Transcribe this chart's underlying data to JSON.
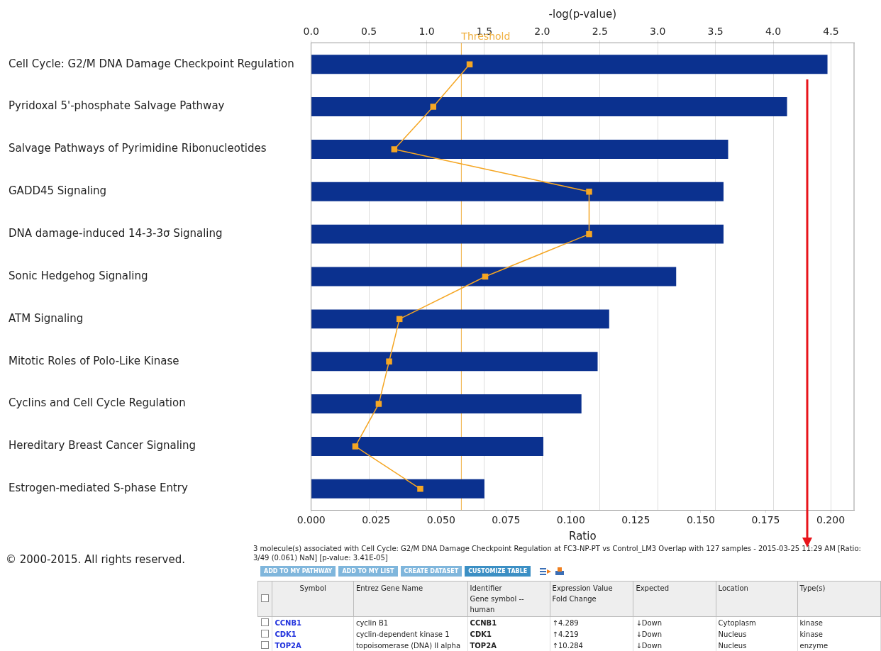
{
  "chart_data": [
    {
      "type": "bar",
      "orientation": "horizontal",
      "categories": [
        "Cell Cycle: G2/M DNA Damage Checkpoint Regulation",
        "Pyridoxal 5'-phosphate Salvage Pathway",
        "Salvage Pathways of Pyrimidine Ribonucleotides",
        "GADD45 Signaling",
        "DNA damage-induced 14-3-3σ Signaling",
        "Sonic Hedgehog Signaling",
        "ATM Signaling",
        "Mitotic Roles of Polo-Like Kinase",
        "Cyclins and Cell Cycle Regulation",
        "Hereditary Breast Cancer Signaling",
        "Estrogen-mediated S-phase Entry"
      ],
      "series": [
        {
          "type": "bar",
          "axis": "x2",
          "color": "#0b318f",
          "values": [
            4.47,
            4.12,
            3.61,
            3.57,
            3.57,
            3.16,
            2.58,
            2.48,
            2.34,
            2.01,
            1.5
          ]
        },
        {
          "type": "line",
          "color": "#f5a623",
          "values": [
            0.061,
            0.047,
            0.032,
            0.107,
            0.107,
            0.067,
            0.034,
            0.03,
            0.026,
            0.017,
            0.042
          ]
        }
      ],
      "xlabel": "Ratio",
      "x2label": "-log(p-value)",
      "xlim": [
        0,
        0.209
      ],
      "xticks": [
        {
          "value": 0,
          "label": "0.000"
        },
        0.025,
        {
          "value": 0.05,
          "label": "0.050"
        },
        0.075,
        {
          "value": 0.1,
          "label": "0.100"
        },
        0.125,
        {
          "value": 0.15,
          "label": "0.150"
        },
        0.175,
        {
          "value": 0.2,
          "label": "0.200"
        }
      ],
      "x2lim": [
        0,
        4.7
      ],
      "x2ticks": [
        {
          "value": 0,
          "label": "0.0"
        },
        0.5,
        {
          "value": 1,
          "label": "1.0"
        },
        1.5,
        {
          "value": 2,
          "label": "2.0"
        },
        2.5,
        {
          "value": 3,
          "label": "3.0"
        },
        3.5,
        {
          "value": 4,
          "label": "4.0"
        },
        4.5
      ],
      "ref_lines": [
        {
          "axis": "x2",
          "value": 1.3,
          "label": "Threshold",
          "color": "#f0b040"
        }
      ],
      "grid": "x",
      "legend": false,
      "marker": "square",
      "line_style": "solid",
      "annotations": [
        "© 2000-2015. All rights reserved."
      ]
    },
    {
      "type": "other",
      "title": "3 molecule(s) associated with Cell Cycle: G2/M DNA Damage Checkpoint Regulation at FC3-NP-PT vs Control_LM3 Overlap with 127 samples - 2015-03-25 11:29 AM [Ratio: 3/49 (0.061) NaN] [p-value: 3.41E-05]",
      "categories": [
        "Symbol",
        "Entrez Gene Name",
        "Identifier\nGene symbol -- human",
        "Expression Value\nFold Change",
        "Expected",
        "Location",
        "Type(s)"
      ],
      "annotations": [
        "ADD TO MY PATHWAY",
        "ADD TO MY LIST",
        "CREATE DATASET",
        "CUSTOMIZE TABLE",
        "CCNB1",
        "cyclin B1",
        "CCNB1",
        "↑4.289",
        "↓Down",
        "Cytoplasm",
        "kinase",
        "CDK1",
        "cyclin-dependent kinase 1",
        "CDK1",
        "↑4.219",
        "↓Down",
        "Nucleus",
        "kinase",
        "TOP2A",
        "topoisomerase (DNA) II alpha",
        "TOP2A",
        "↑10.284",
        "↓Down",
        "Nucleus",
        "enzyme"
      ]
    }
  ]
}
